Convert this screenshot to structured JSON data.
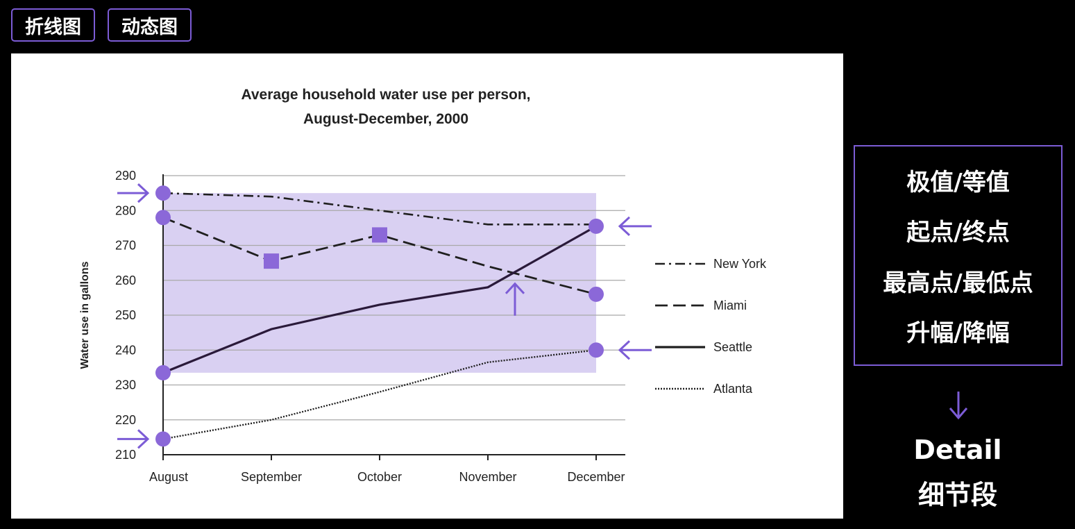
{
  "tabs": [
    {
      "label": "折线图"
    },
    {
      "label": "动态图"
    }
  ],
  "colors": {
    "accent": "#7c5cd6",
    "highlight_fill": "#d9d0f2",
    "marker": "#8b68d8",
    "line": "#1f1f1f"
  },
  "chart_data": {
    "type": "line",
    "title_lines": [
      "Average household water use per person,",
      "August-December, 2000"
    ],
    "ylabel": "Water use in gallons",
    "xlabel": "",
    "categories": [
      "August",
      "September",
      "October",
      "November",
      "December"
    ],
    "ylim": [
      210,
      290
    ],
    "yticks": [
      210,
      220,
      230,
      240,
      250,
      260,
      270,
      280,
      290
    ],
    "grid": true,
    "legend_position": "right",
    "series": [
      {
        "name": "New York",
        "style": "dash-dot",
        "values": [
          285,
          284,
          280,
          276,
          276
        ]
      },
      {
        "name": "Miami",
        "style": "dashed",
        "values": [
          278,
          265.5,
          273,
          264,
          256
        ]
      },
      {
        "name": "Seattle",
        "style": "solid",
        "values": [
          233.5,
          246,
          253,
          258,
          275.5
        ]
      },
      {
        "name": "Atlanta",
        "style": "dotted",
        "values": [
          214.5,
          220,
          228,
          236.5,
          240
        ]
      }
    ],
    "annotations": {
      "shaded_band": {
        "x_from": "August",
        "x_to": "December",
        "y_from": 233.5,
        "y_to": 285
      },
      "circle_markers": [
        {
          "series": "New York",
          "x": "August"
        },
        {
          "series": "Miami",
          "x": "August"
        },
        {
          "series": "Seattle",
          "x": "August"
        },
        {
          "series": "Atlanta",
          "x": "August"
        },
        {
          "series": "Seattle",
          "x": "December"
        },
        {
          "series": "Miami",
          "x": "December"
        },
        {
          "series": "Atlanta",
          "x": "December"
        }
      ],
      "square_markers": [
        {
          "series": "Miami",
          "x": "September"
        },
        {
          "series": "Miami",
          "x": "October"
        }
      ],
      "arrows": [
        {
          "direction": "right",
          "x": "August",
          "y": 285
        },
        {
          "direction": "right",
          "x": "August",
          "y": 214.5
        },
        {
          "direction": "left",
          "x": "December",
          "y": 275.5
        },
        {
          "direction": "left",
          "x": "December",
          "y": 240
        },
        {
          "direction": "up",
          "x": 3.25,
          "y": 260
        }
      ]
    }
  },
  "side_panel": {
    "items": [
      "极值/等值",
      "起点/终点",
      "最高点/最低点",
      "升幅/降幅"
    ],
    "detail_en": "Detail",
    "detail_zh": "细节段"
  }
}
